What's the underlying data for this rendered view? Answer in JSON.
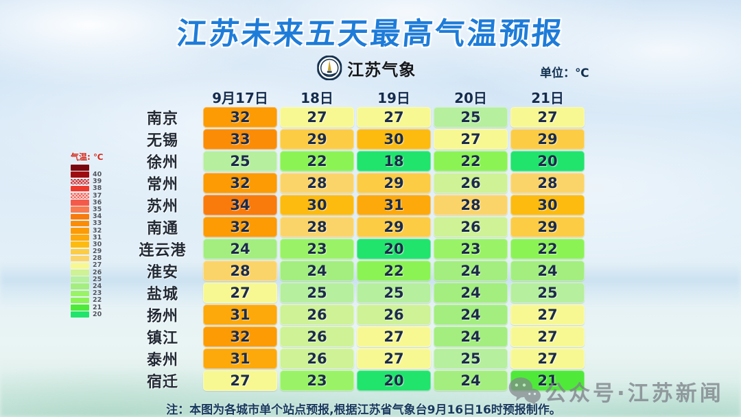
{
  "header": {
    "title": "江苏未来五天最高气温预报",
    "logo_text": "江苏气象",
    "unit_label": "单位：℃"
  },
  "legend": {
    "title": "气温: ℃",
    "items": [
      {
        "label": "",
        "color": "#7a060f",
        "pattern": false
      },
      {
        "label": "40",
        "color": "#9e0b10",
        "pattern": false
      },
      {
        "label": "39",
        "color": "#c01c22",
        "pattern": true
      },
      {
        "label": "38",
        "color": "#ee392c",
        "pattern": false
      },
      {
        "label": "37",
        "color": "#f25245",
        "pattern": true
      },
      {
        "label": "36",
        "color": "#f45a4a",
        "pattern": false
      },
      {
        "label": "35",
        "color": "#f87a4e",
        "pattern": false
      },
      {
        "label": "34",
        "color": "#f97b0b",
        "pattern": false
      },
      {
        "label": "33",
        "color": "#fb8c05",
        "pattern": false
      },
      {
        "label": "32",
        "color": "#fc9b04",
        "pattern": false
      },
      {
        "label": "31",
        "color": "#fda90b",
        "pattern": false
      },
      {
        "label": "30",
        "color": "#fdbb10",
        "pattern": false
      },
      {
        "label": "29",
        "color": "#fccc45",
        "pattern": false
      },
      {
        "label": "28",
        "color": "#fbd469",
        "pattern": false
      },
      {
        "label": "27",
        "color": "#f8f893",
        "pattern": false
      },
      {
        "label": "26",
        "color": "#cef295",
        "pattern": false
      },
      {
        "label": "25",
        "color": "#b6ef9d",
        "pattern": false
      },
      {
        "label": "24",
        "color": "#a3ee7f",
        "pattern": false
      },
      {
        "label": "23",
        "color": "#9af366",
        "pattern": false
      },
      {
        "label": "22",
        "color": "#8cf355",
        "pattern": false
      },
      {
        "label": "21",
        "color": "#4fe93a",
        "pattern": false
      },
      {
        "label": "20",
        "color": "#21e46c",
        "pattern": false
      }
    ]
  },
  "chart_data": {
    "type": "heatmap",
    "title": "江苏未来五天最高气温预报",
    "unit": "℃",
    "x": [
      "9月17日",
      "18日",
      "19日",
      "20日",
      "21日"
    ],
    "rows": [
      "南京",
      "无锡",
      "徐州",
      "常州",
      "苏州",
      "南通",
      "连云港",
      "淮安",
      "盐城",
      "扬州",
      "镇江",
      "泰州",
      "宿迁"
    ],
    "values": [
      [
        32,
        27,
        27,
        25,
        27
      ],
      [
        33,
        29,
        30,
        27,
        29
      ],
      [
        25,
        22,
        18,
        22,
        20
      ],
      [
        32,
        28,
        29,
        26,
        28
      ],
      [
        34,
        30,
        31,
        28,
        30
      ],
      [
        32,
        28,
        29,
        26,
        29
      ],
      [
        24,
        23,
        20,
        23,
        22
      ],
      [
        28,
        24,
        22,
        24,
        24
      ],
      [
        27,
        25,
        25,
        24,
        25
      ],
      [
        31,
        26,
        26,
        24,
        27
      ],
      [
        32,
        26,
        27,
        24,
        27
      ],
      [
        31,
        26,
        27,
        25,
        27
      ],
      [
        27,
        23,
        20,
        24,
        21
      ]
    ],
    "color_scale_range": [
      20,
      40
    ],
    "legend_position": "left"
  },
  "colors": {
    "title_blue": "#1e7cd9",
    "cell_text": "#1c2b4a",
    "temp_colors": {
      "18": "#21e46c",
      "20": "#21e46c",
      "21": "#4fe93a",
      "22": "#8cf355",
      "23": "#9af366",
      "24": "#a3ee7f",
      "25": "#b6ef9d",
      "26": "#cef295",
      "27": "#f8f893",
      "28": "#fbd469",
      "29": "#fccc45",
      "30": "#fdbb10",
      "31": "#fda90b",
      "32": "#fc9b04",
      "33": "#fb8c05",
      "34": "#f97b0b"
    }
  },
  "note": "注：本图为各城市单个站点预报,根据江苏省气象台9月16日16时预报制作。",
  "watermark": {
    "text": "公众号·江苏新闻",
    "icon": "wechat-icon"
  }
}
